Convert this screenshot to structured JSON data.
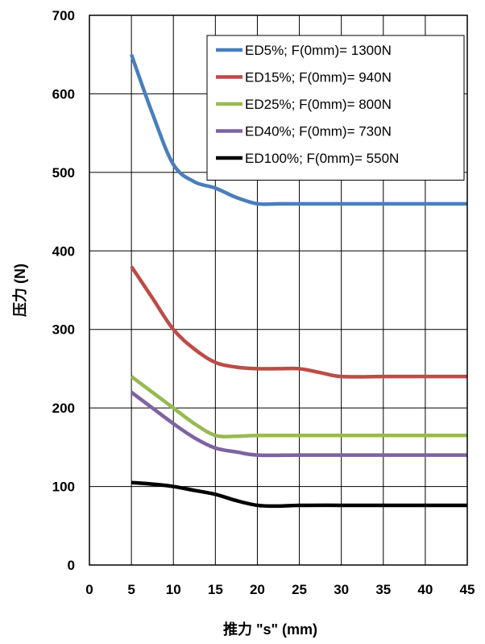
{
  "chart_data": {
    "type": "line",
    "xlabel": "推力 \"s\" (mm)",
    "ylabel": "压力 (N)",
    "xlim": [
      0,
      45
    ],
    "ylim": [
      0,
      700
    ],
    "xticks": [
      0,
      5,
      10,
      15,
      20,
      25,
      30,
      35,
      40,
      45
    ],
    "yticks": [
      0,
      100,
      200,
      300,
      400,
      500,
      600,
      700
    ],
    "grid": true,
    "legend_position": "top-right",
    "series": [
      {
        "name": "ED5%; F(0mm)= 1300N",
        "color": "#4a7ebb",
        "x": [
          5,
          7.5,
          10,
          12.5,
          15,
          17.5,
          20,
          22.5,
          25,
          30,
          35,
          40,
          45
        ],
        "y": [
          650,
          575,
          510,
          488,
          480,
          468,
          460,
          460,
          460,
          460,
          460,
          460,
          460
        ]
      },
      {
        "name": "ED15%; F(0mm)= 940N",
        "color": "#be4b48",
        "x": [
          5,
          7.5,
          10,
          12.5,
          15,
          17.5,
          20,
          22.5,
          25,
          27.5,
          30,
          35,
          40,
          45
        ],
        "y": [
          380,
          340,
          300,
          275,
          258,
          252,
          250,
          250,
          250,
          245,
          240,
          240,
          240,
          240
        ]
      },
      {
        "name": "ED25%; F(0mm)= 800N",
        "color": "#98b954",
        "x": [
          5,
          7.5,
          10,
          12.5,
          15,
          17.5,
          20,
          25,
          30,
          35,
          40,
          45
        ],
        "y": [
          240,
          220,
          200,
          180,
          165,
          164,
          165,
          165,
          165,
          165,
          165,
          165
        ]
      },
      {
        "name": "ED40%; F(0mm)= 730N",
        "color": "#7e62a1",
        "x": [
          5,
          7.5,
          10,
          12.5,
          15,
          17.5,
          20,
          25,
          30,
          35,
          40,
          45
        ],
        "y": [
          220,
          200,
          180,
          162,
          149,
          144,
          140,
          140,
          140,
          140,
          140,
          140
        ]
      },
      {
        "name": "ED100%; F(0mm)= 550N",
        "color": "#000000",
        "x": [
          5,
          7.5,
          10,
          12.5,
          15,
          17.5,
          20,
          22.5,
          25,
          30,
          35,
          40,
          45
        ],
        "y": [
          105,
          103,
          100,
          95,
          90,
          82,
          76,
          75,
          76,
          76,
          76,
          76,
          76
        ]
      }
    ]
  }
}
